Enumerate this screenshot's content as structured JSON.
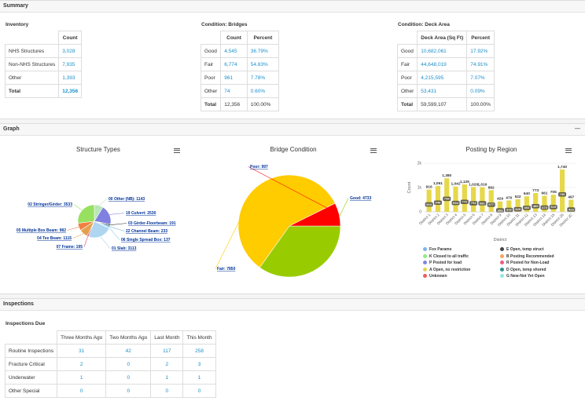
{
  "summary": {
    "title": "Summary",
    "inventory": {
      "title": "Inventory",
      "header": "Count",
      "rows": [
        {
          "label": "NHS Structures",
          "count": "3,028"
        },
        {
          "label": "Non-NHS Structures",
          "count": "7,935"
        },
        {
          "label": "Other",
          "count": "1,393"
        },
        {
          "label": "Total",
          "count": "12,356"
        }
      ]
    },
    "bridges": {
      "title": "Condition: Bridges",
      "headers": [
        "Count",
        "Percent"
      ],
      "rows": [
        {
          "label": "Good",
          "count": "4,545",
          "percent": "36.79%"
        },
        {
          "label": "Fair",
          "count": "6,774",
          "percent": "54.83%"
        },
        {
          "label": "Poor",
          "count": "961",
          "percent": "7.78%"
        },
        {
          "label": "Other",
          "count": "74",
          "percent": "0.60%"
        },
        {
          "label": "Total",
          "count": "12,356",
          "percent": "100.00%"
        }
      ]
    },
    "deck": {
      "title": "Condition: Deck Area",
      "headers": [
        "Deck Area (Sq Ft)",
        "Percent"
      ],
      "rows": [
        {
          "label": "Good",
          "count": "10,682,061",
          "percent": "17.92%"
        },
        {
          "label": "Fair",
          "count": "44,648,019",
          "percent": "74.91%"
        },
        {
          "label": "Poor",
          "count": "4,215,595",
          "percent": "7.07%"
        },
        {
          "label": "Other",
          "count": "53,431",
          "percent": "0.09%"
        },
        {
          "label": "Total",
          "count": "59,599,107",
          "percent": "100.00%"
        }
      ]
    }
  },
  "graph": {
    "title": "Graph",
    "collapse": "—"
  },
  "chart_data": [
    {
      "type": "pie",
      "title": "Structure Types",
      "labels": [
        "00 Other (NB)",
        "19 Culvert",
        "03 Girder-Floorbeam",
        "22 Channel Beam",
        "06 Single Spread Box",
        "01 Slab",
        "07 Frame",
        "04 Tee Beam",
        "05 Multiple Box Beam",
        "02 Stringer/Girder"
      ],
      "values": [
        1143,
        2530,
        191,
        233,
        137,
        3113,
        195,
        1115,
        982,
        3533
      ],
      "colors": [
        "#b8e6b8",
        "#8080e0",
        "#3a3a3a",
        "#5fb3d9",
        "#8fd0f0",
        "#aed6f1",
        "#c94e7a",
        "#e5a04e",
        "#f08040",
        "#98e060"
      ],
      "label_texts": [
        "00 Other (NB): 1143",
        "19 Culvert: 2530",
        "03 Girder-Floorbeam: 191",
        "22 Channel Beam: 233",
        "06 Single Spread Box: 137",
        "01 Slab: 3113",
        "07 Frame: 195",
        "04 Tee Beam: 1115",
        "05 Multiple Box Beam: 982",
        "02 Stringer/Girder: 3533"
      ]
    },
    {
      "type": "pie",
      "title": "Bridge Condition",
      "labels": [
        "Good",
        "Fair",
        "Poor"
      ],
      "values": [
        4733,
        7850,
        997
      ],
      "colors": [
        "#99cc00",
        "#ffcc00",
        "#ff0000"
      ],
      "label_texts": [
        "Good: 4733",
        "Fair: 7850",
        "Poor: 997"
      ]
    },
    {
      "type": "bar",
      "title": "Posting by Region",
      "xlabel": "District",
      "ylabel": "Count",
      "yticks": [
        "0",
        "1k",
        "2k"
      ],
      "ylim": [
        0,
        2000
      ],
      "categories": [
        "District 1",
        "District 2",
        "District 3",
        "District 4",
        "District 5",
        "District 6",
        "District 7",
        "District 8",
        "District 9",
        "District 10",
        "District 11",
        "District 12",
        "District 13",
        "District 14",
        "District 15",
        "District 28",
        "District 2C"
      ],
      "totals": [
        916,
        1061,
        1380,
        1042,
        1129,
        1020,
        1016,
        892,
        429,
        470,
        522,
        640,
        773,
        661,
        705,
        1740,
        497
      ],
      "total_labels": [
        "916",
        "1,061",
        "1,380",
        "1,042",
        "1,129",
        "1,020",
        "1,016",
        "892",
        "429",
        "470",
        "522",
        "640",
        "773",
        "661",
        "705",
        "1,740",
        "497"
      ],
      "inner_values": [
        663,
        646,
        736,
        654,
        772,
        704,
        681,
        677,
        303,
        319,
        329,
        402,
        489,
        473,
        519,
        730,
        423
      ],
      "bar_color": "#e6d84a",
      "legend": [
        {
          "name": "Fox Params",
          "color": "#7cb5ec"
        },
        {
          "name": "E Open, temp struct",
          "color": "#434348"
        },
        {
          "name": "K Closed to all traffic",
          "color": "#90ed7d"
        },
        {
          "name": "B Posting Recommended",
          "color": "#f7a35c"
        },
        {
          "name": "P Posted for load",
          "color": "#8085e9"
        },
        {
          "name": "R Posted for Non-Load",
          "color": "#f15c80"
        },
        {
          "name": "A Open, no restriction",
          "color": "#e4d354"
        },
        {
          "name": "D Open, temp shored",
          "color": "#2b908f"
        },
        {
          "name": "Unknown",
          "color": "#f45b5b"
        },
        {
          "name": "G New-Not Yet Open",
          "color": "#91e8e1"
        }
      ]
    }
  ],
  "inspections": {
    "title": "Inspections",
    "subtitle": "Inspections Due",
    "headers": [
      "Three Months Ago",
      "Two Months Ago",
      "Last Month",
      "This Month"
    ],
    "rows": [
      {
        "label": "Routine Inspections",
        "values": [
          "31",
          "42",
          "117",
          "258"
        ]
      },
      {
        "label": "Fracture Critical",
        "values": [
          "2",
          "0",
          "2",
          "3"
        ]
      },
      {
        "label": "Underwater",
        "values": [
          "1",
          "0",
          "1",
          "1"
        ]
      },
      {
        "label": "Other Special",
        "values": [
          "0",
          "0",
          "0",
          "0"
        ]
      }
    ]
  }
}
